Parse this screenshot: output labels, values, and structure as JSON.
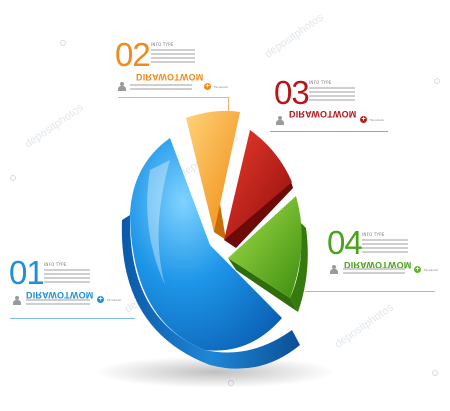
{
  "colors": {
    "blue": "#1c8fe0",
    "orange": "#f6a01e",
    "red": "#c51814",
    "green": "#5fb81a",
    "num_01": "#1f8fd6",
    "num_02": "#f08a1c",
    "num_03": "#b4161a",
    "num_04": "#4aa31b"
  },
  "segments": [
    {
      "id": "01",
      "caption": "INFO TYPE",
      "heading": "DIRAWOTWOM",
      "follow": "Facebook",
      "color_key": "num_01"
    },
    {
      "id": "02",
      "caption": "INFO TYPE",
      "heading": "DIRAWOTWOM",
      "follow": "Facebook",
      "color_key": "num_02"
    },
    {
      "id": "03",
      "caption": "INFO TYPE",
      "heading": "DIRAWOTWOM",
      "follow": "Facebook",
      "color_key": "num_03"
    },
    {
      "id": "04",
      "caption": "INFO TYPE",
      "heading": "DIRAWOTWOM",
      "follow": "Facebook",
      "color_key": "num_04"
    }
  ],
  "watermark": "depositphotos"
}
